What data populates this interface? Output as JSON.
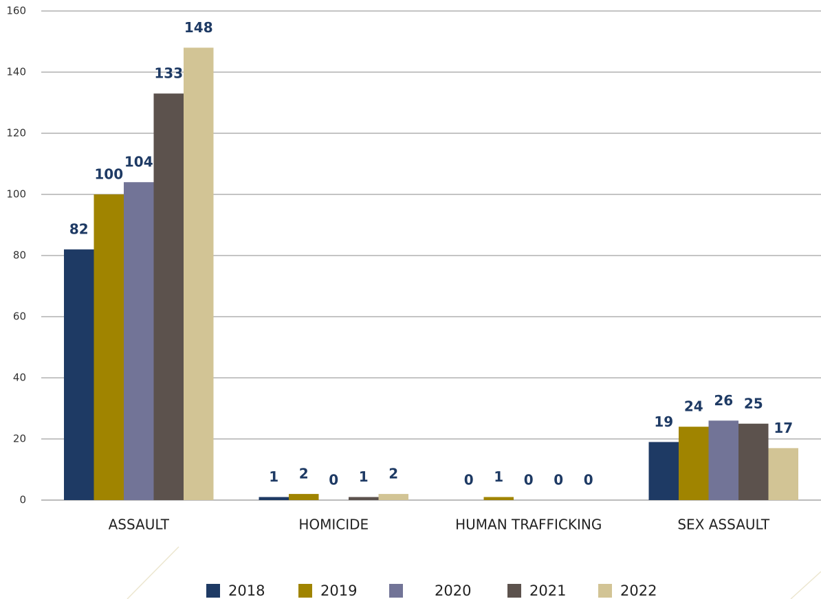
{
  "chart_data": {
    "type": "bar",
    "categories": [
      "ASSAULT",
      "HOMICIDE",
      "HUMAN TRAFFICKING",
      "SEX ASSAULT"
    ],
    "series": [
      {
        "name": "2018",
        "color": "#1e3a64",
        "values": [
          82,
          1,
          0,
          19
        ]
      },
      {
        "name": "2019",
        "color": "#a08400",
        "values": [
          100,
          2,
          1,
          24
        ]
      },
      {
        "name": "2020",
        "color": "#727497",
        "values": [
          104,
          0,
          0,
          26
        ]
      },
      {
        "name": "2021",
        "color": "#5c524d",
        "values": [
          133,
          1,
          0,
          25
        ]
      },
      {
        "name": "2022",
        "color": "#d2c495",
        "values": [
          148,
          2,
          0,
          17
        ]
      }
    ],
    "ylim": [
      0,
      160
    ],
    "yticks": [
      0,
      20,
      40,
      60,
      80,
      100,
      120,
      140,
      160
    ],
    "grid": true,
    "legend": "bottom"
  }
}
